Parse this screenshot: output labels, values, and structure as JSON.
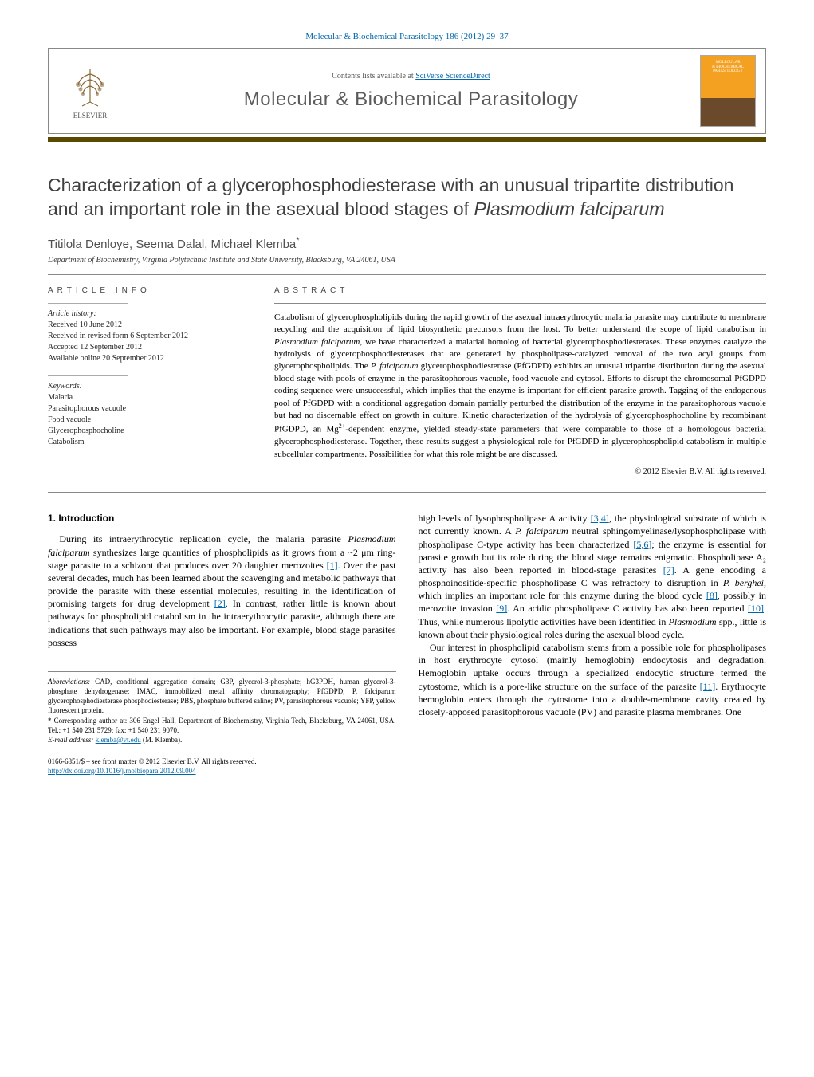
{
  "journal_ref": "Molecular & Biochemical Parasitology 186 (2012) 29–37",
  "header": {
    "contents_text": "Contents lists available at ",
    "contents_link": "SciVerse ScienceDirect",
    "journal_name": "Molecular & Biochemical Parasitology",
    "publisher": "ELSEVIER",
    "cover_line1": "MOLECULAR",
    "cover_line2": "& BIOCHEMICAL",
    "cover_line3": "PARASITOLOGY"
  },
  "divider_color": "#5a4a00",
  "title_plain": "Characterization of a glycerophosphodiesterase with an unusual tripartite distribution and an important role in the asexual blood stages of ",
  "title_italic": "Plasmodium falciparum",
  "authors": "Titilola Denloye, Seema Dalal, Michael Klemba",
  "corr_symbol": "*",
  "affiliation": "Department of Biochemistry, Virginia Polytechnic Institute and State University, Blacksburg, VA 24061, USA",
  "article_info": {
    "label": "ARTICLE INFO",
    "history_head": "Article history:",
    "history": [
      "Received 10 June 2012",
      "Received in revised form 6 September 2012",
      "Accepted 12 September 2012",
      "Available online 20 September 2012"
    ],
    "keywords_head": "Keywords:",
    "keywords": [
      "Malaria",
      "Parasitophorous vacuole",
      "Food vacuole",
      "Glycerophosphocholine",
      "Catabolism"
    ]
  },
  "abstract": {
    "label": "ABSTRACT",
    "text_parts": [
      "Catabolism of glycerophospholipids during the rapid growth of the asexual intraerythrocytic malaria parasite may contribute to membrane recycling and the acquisition of lipid biosynthetic precursors from the host. To better understand the scope of lipid catabolism in ",
      "Plasmodium falciparum",
      ", we have characterized a malarial homolog of bacterial glycerophosphodiesterases. These enzymes catalyze the hydrolysis of glycerophosphodiesterases that are generated by phospholipase-catalyzed removal of the two acyl groups from glycerophospholipids. The ",
      "P. falciparum",
      " glycerophosphodiesterase (PfGDPD) exhibits an unusual tripartite distribution during the asexual blood stage with pools of enzyme in the parasitophorous vacuole, food vacuole and cytosol. Efforts to disrupt the chromosomal PfGDPD coding sequence were unsuccessful, which implies that the enzyme is important for efficient parasite growth. Tagging of the endogenous pool of PfGDPD with a conditional aggregation domain partially perturbed the distribution of the enzyme in the parasitophorous vacuole but had no discernable effect on growth in culture. Kinetic characterization of the hydrolysis of glycerophosphocholine by recombinant PfGDPD, an Mg",
      "2+",
      "-dependent enzyme, yielded steady-state parameters that were comparable to those of a homologous bacterial glycerophosphodiesterase. Together, these results suggest a physiological role for PfGDPD in glycerophospholipid catabolism in multiple subcellular compartments. Possibilities for what this role might be are discussed."
    ],
    "copyright": "© 2012 Elsevier B.V. All rights reserved."
  },
  "intro": {
    "heading": "1. Introduction",
    "col1_parts": [
      "During its intraerythrocytic replication cycle, the malaria parasite ",
      "Plasmodium falciparum",
      " synthesizes large quantities of phospholipids as it grows from a ~2 μm ring-stage parasite to a schizont that produces over 20 daughter merozoites ",
      "[1]",
      ". Over the past several decades, much has been learned about the scavenging and metabolic pathways that provide the parasite with these essential molecules, resulting in the identification of promising targets for drug development ",
      "[2]",
      ". In contrast, rather little is known about pathways for phospholipid catabolism in the intraerythrocytic parasite, although there are indications that such pathways may also be important. For example, blood stage parasites possess"
    ],
    "col2_parts": [
      "high levels of lysophospholipase A activity ",
      "[3,4]",
      ", the physiological substrate of which is not currently known. A ",
      "P. falciparum",
      " neutral sphingomyelinase/lysophospholipase with phospholipase C-type activity has been characterized ",
      "[5,6]",
      "; the enzyme is essential for parasite growth but its role during the blood stage remains enigmatic. Phospholipase A₂ activity has also been reported in blood-stage parasites ",
      "[7]",
      ". A gene encoding a phosphoinositide-specific phospholipase C was refractory to disruption in ",
      "P. berghei",
      ", which implies an important role for this enzyme during the blood cycle ",
      "[8]",
      ", possibly in merozoite invasion ",
      "[9]",
      ". An acidic phospholipase C activity has also been reported ",
      "[10]",
      ". Thus, while numerous lipolytic activities have been identified in ",
      "Plasmodium",
      " spp., little is known about their physiological roles during the asexual blood cycle."
    ],
    "col2_para2": "Our interest in phospholipid catabolism stems from a possible role for phospholipases in host erythrocyte cytosol (mainly hemoglobin) endocytosis and degradation. Hemoglobin uptake occurs through a specialized endocytic structure termed the cytostome, which is a pore-like structure on the surface of the parasite [11]. Erythrocyte hemoglobin enters through the cytostome into a double-membrane cavity created by closely-apposed parasitophorous vacuole (PV) and parasite plasma membranes. One",
    "col2_ref11": "[11]"
  },
  "footnotes": {
    "abbrev_label": "Abbreviations:",
    "abbrev_text": " CAD, conditional aggregation domain; G3P, glycerol-3-phosphate; hG3PDH, human glycerol-3-phosphate dehydrogenase; IMAC, immobilized metal affinity chromatography; PfGDPD, P. falciparum glycerophosphodiesterase phosphodiesterase; PBS, phosphate buffered saline; PV, parasitophorous vacuole; YFP, yellow fluorescent protein.",
    "corr_label": "* Corresponding author at:",
    "corr_text": " 306 Engel Hall, Department of Biochemistry, Virginia Tech, Blacksburg, VA 24061, USA. Tel.: +1 540 231 5729; fax: +1 540 231 9070.",
    "email_label": "E-mail address:",
    "email": "klemba@vt.edu",
    "email_person": " (M. Klemba)."
  },
  "bottom": {
    "issn_line": "0166-6851/$ – see front matter © 2012 Elsevier B.V. All rights reserved.",
    "doi": "http://dx.doi.org/10.1016/j.molbiopara.2012.09.004"
  },
  "colors": {
    "link": "#0066aa",
    "title": "#404040",
    "divider": "#5a4a00",
    "cover_top": "#f4a020",
    "cover_bottom": "#6a4a2a"
  }
}
